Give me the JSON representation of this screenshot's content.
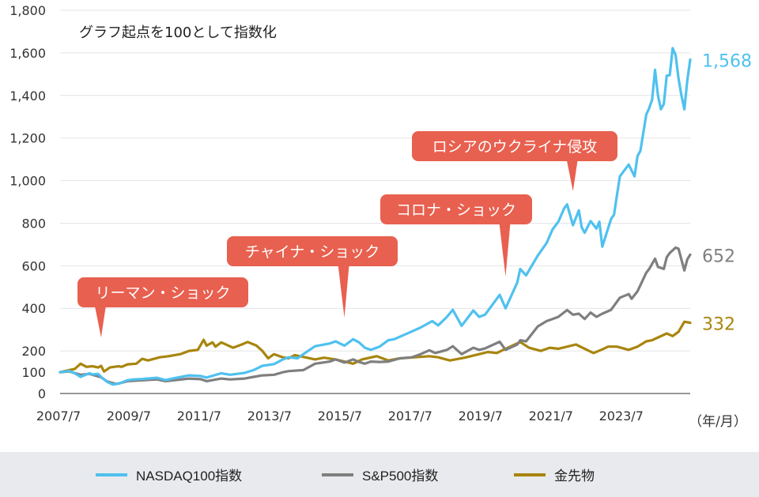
{
  "chart_data": {
    "type": "line",
    "title": "",
    "subtitle": "グラフ起点を100として指数化",
    "xlabel": "（年/月）",
    "ylabel": "",
    "ylim": [
      0,
      1800
    ],
    "yticks": [
      0,
      100,
      200,
      400,
      600,
      800,
      1000,
      1200,
      1400,
      1600,
      1800
    ],
    "ytick_labels": [
      "0",
      "100",
      "200",
      "400",
      "600",
      "800",
      "1,000",
      "1,200",
      "1,400",
      "1,600",
      "1,800"
    ],
    "xlim": [
      "2007/7",
      "2025/6"
    ],
    "xticks": [
      "2007/7",
      "2009/7",
      "2011/7",
      "2013/7",
      "2015/7",
      "2017/7",
      "2019/7",
      "2021/7",
      "2023/7"
    ],
    "grid": true,
    "legend_position": "bottom",
    "series": [
      {
        "name": "NASDAQ100指数",
        "color": "#4fc1ef",
        "end_label": "1,568",
        "points": [
          [
            "2007/7",
            100
          ],
          [
            "2007/10",
            106
          ],
          [
            "2007/12",
            95
          ],
          [
            "2008/2",
            78
          ],
          [
            "2008/5",
            95
          ],
          [
            "2008/6",
            90
          ],
          [
            "2008/8",
            92
          ],
          [
            "2008/9",
            78
          ],
          [
            "2008/11",
            55
          ],
          [
            "2009/1",
            42
          ],
          [
            "2009/3",
            46
          ],
          [
            "2009/6",
            62
          ],
          [
            "2009/8",
            66
          ],
          [
            "2009/11",
            68
          ],
          [
            "2010/4",
            74
          ],
          [
            "2010/7",
            63
          ],
          [
            "2010/10",
            72
          ],
          [
            "2011/3",
            85
          ],
          [
            "2011/7",
            82
          ],
          [
            "2011/9",
            75
          ],
          [
            "2012/2",
            95
          ],
          [
            "2012/5",
            88
          ],
          [
            "2012/10",
            97
          ],
          [
            "2013/1",
            110
          ],
          [
            "2013/4",
            130
          ],
          [
            "2013/8",
            138
          ],
          [
            "2013/11",
            160
          ],
          [
            "2014/1",
            170
          ],
          [
            "2014/4",
            165
          ],
          [
            "2014/6",
            185
          ],
          [
            "2014/10",
            222
          ],
          [
            "2015/3",
            235
          ],
          [
            "2015/5",
            245
          ],
          [
            "2015/8",
            225
          ],
          [
            "2015/11",
            255
          ],
          [
            "2016/1",
            240
          ],
          [
            "2016/3",
            215
          ],
          [
            "2016/5",
            205
          ],
          [
            "2016/8",
            220
          ],
          [
            "2016/11",
            250
          ],
          [
            "2017/1",
            255
          ],
          [
            "2017/6",
            285
          ],
          [
            "2017/10",
            310
          ],
          [
            "2018/2",
            340
          ],
          [
            "2018/4",
            320
          ],
          [
            "2018/7",
            360
          ],
          [
            "2018/9",
            393
          ],
          [
            "2018/12",
            318
          ],
          [
            "2019/4",
            390
          ],
          [
            "2019/6",
            360
          ],
          [
            "2019/8",
            370
          ],
          [
            "2020/1",
            463
          ],
          [
            "2020/3",
            400
          ],
          [
            "2020/7",
            522
          ],
          [
            "2020/8",
            585
          ],
          [
            "2020/10",
            555
          ],
          [
            "2021/2",
            648
          ],
          [
            "2021/5",
            707
          ],
          [
            "2021/7",
            770
          ],
          [
            "2021/9",
            807
          ],
          [
            "2021/11",
            870
          ],
          [
            "2021/12",
            888
          ],
          [
            "2022/2",
            790
          ],
          [
            "2022/4",
            860
          ],
          [
            "2022/5",
            780
          ],
          [
            "2022/6",
            755
          ],
          [
            "2022/8",
            810
          ],
          [
            "2022/10",
            775
          ],
          [
            "2022/11",
            807
          ],
          [
            "2022/12",
            690
          ],
          [
            "2023/3",
            820
          ],
          [
            "2023/4",
            840
          ],
          [
            "2023/6",
            1020
          ],
          [
            "2023/9",
            1075
          ],
          [
            "2023/11",
            1020
          ],
          [
            "2023/12",
            1115
          ],
          [
            "2024/1",
            1140
          ],
          [
            "2024/2",
            1225
          ],
          [
            "2024/3",
            1310
          ],
          [
            "2024/4",
            1340
          ],
          [
            "2024/5",
            1380
          ],
          [
            "2024/6",
            1520
          ],
          [
            "2024/7",
            1400
          ],
          [
            "2024/8",
            1335
          ],
          [
            "2024/9",
            1360
          ],
          [
            "2024/10",
            1493
          ],
          [
            "2024/11",
            1495
          ],
          [
            "2024/12",
            1622
          ],
          [
            "2025/1",
            1590
          ],
          [
            "2025/2",
            1480
          ],
          [
            "2025/3",
            1400
          ],
          [
            "2025/4",
            1335
          ],
          [
            "2025/5",
            1470
          ],
          [
            "2025/6",
            1568
          ]
        ]
      },
      {
        "name": "S&P500指数",
        "color": "#7f7f7f",
        "end_label": "652",
        "points": [
          [
            "2007/7",
            100
          ],
          [
            "2007/10",
            104
          ],
          [
            "2008/2",
            88
          ],
          [
            "2008/5",
            92
          ],
          [
            "2008/9",
            76
          ],
          [
            "2008/11",
            57
          ],
          [
            "2009/2",
            45
          ],
          [
            "2009/3",
            47
          ],
          [
            "2009/6",
            58
          ],
          [
            "2009/11",
            62
          ],
          [
            "2010/4",
            66
          ],
          [
            "2010/7",
            58
          ],
          [
            "2011/3",
            70
          ],
          [
            "2011/7",
            67
          ],
          [
            "2011/9",
            58
          ],
          [
            "2012/2",
            70
          ],
          [
            "2012/5",
            66
          ],
          [
            "2012/10",
            70
          ],
          [
            "2013/1",
            78
          ],
          [
            "2013/4",
            85
          ],
          [
            "2013/8",
            88
          ],
          [
            "2013/11",
            100
          ],
          [
            "2014/1",
            105
          ],
          [
            "2014/6",
            110
          ],
          [
            "2014/10",
            140
          ],
          [
            "2015/3",
            150
          ],
          [
            "2015/5",
            160
          ],
          [
            "2015/8",
            145
          ],
          [
            "2015/11",
            160
          ],
          [
            "2016/1",
            148
          ],
          [
            "2016/3",
            140
          ],
          [
            "2016/5",
            150
          ],
          [
            "2016/8",
            148
          ],
          [
            "2016/11",
            150
          ],
          [
            "2017/3",
            165
          ],
          [
            "2017/7",
            170
          ],
          [
            "2017/10",
            185
          ],
          [
            "2018/1",
            203
          ],
          [
            "2018/3",
            190
          ],
          [
            "2018/7",
            205
          ],
          [
            "2018/9",
            222
          ],
          [
            "2018/12",
            185
          ],
          [
            "2019/4",
            215
          ],
          [
            "2019/6",
            205
          ],
          [
            "2019/8",
            212
          ],
          [
            "2020/1",
            243
          ],
          [
            "2020/3",
            205
          ],
          [
            "2020/7",
            230
          ],
          [
            "2020/8",
            250
          ],
          [
            "2020/10",
            245
          ],
          [
            "2021/2",
            315
          ],
          [
            "2021/5",
            340
          ],
          [
            "2021/7",
            350
          ],
          [
            "2021/9",
            360
          ],
          [
            "2021/12",
            392
          ],
          [
            "2022/2",
            370
          ],
          [
            "2022/4",
            375
          ],
          [
            "2022/6",
            350
          ],
          [
            "2022/8",
            380
          ],
          [
            "2022/10",
            360
          ],
          [
            "2022/12",
            375
          ],
          [
            "2023/3",
            393
          ],
          [
            "2023/6",
            450
          ],
          [
            "2023/9",
            467
          ],
          [
            "2023/10",
            445
          ],
          [
            "2023/12",
            480
          ],
          [
            "2024/3",
            567
          ],
          [
            "2024/4",
            585
          ],
          [
            "2024/6",
            633
          ],
          [
            "2024/7",
            595
          ],
          [
            "2024/9",
            585
          ],
          [
            "2024/10",
            640
          ],
          [
            "2024/11",
            660
          ],
          [
            "2025/1",
            685
          ],
          [
            "2025/2",
            680
          ],
          [
            "2025/4",
            578
          ],
          [
            "2025/5",
            630
          ],
          [
            "2025/6",
            652
          ]
        ]
      },
      {
        "name": "金先物",
        "color": "#a8850e",
        "end_label": "332",
        "points": [
          [
            "2007/7",
            100
          ],
          [
            "2007/10",
            110
          ],
          [
            "2007/12",
            115
          ],
          [
            "2008/2",
            140
          ],
          [
            "2008/4",
            125
          ],
          [
            "2008/6",
            128
          ],
          [
            "2008/8",
            122
          ],
          [
            "2008/9",
            130
          ],
          [
            "2008/10",
            103
          ],
          [
            "2008/12",
            122
          ],
          [
            "2009/3",
            128
          ],
          [
            "2009/4",
            125
          ],
          [
            "2009/6",
            137
          ],
          [
            "2009/9",
            140
          ],
          [
            "2009/11",
            163
          ],
          [
            "2010/1",
            155
          ],
          [
            "2010/5",
            170
          ],
          [
            "2010/8",
            175
          ],
          [
            "2010/12",
            185
          ],
          [
            "2011/3",
            200
          ],
          [
            "2011/6",
            205
          ],
          [
            "2011/8",
            252
          ],
          [
            "2011/9",
            225
          ],
          [
            "2011/11",
            240
          ],
          [
            "2011/12",
            220
          ],
          [
            "2012/2",
            240
          ],
          [
            "2012/6",
            215
          ],
          [
            "2012/9",
            230
          ],
          [
            "2012/11",
            242
          ],
          [
            "2013/2",
            225
          ],
          [
            "2013/4",
            200
          ],
          [
            "2013/6",
            165
          ],
          [
            "2013/8",
            185
          ],
          [
            "2013/11",
            170
          ],
          [
            "2014/1",
            165
          ],
          [
            "2014/3",
            180
          ],
          [
            "2014/6",
            172
          ],
          [
            "2014/10",
            160
          ],
          [
            "2015/1",
            168
          ],
          [
            "2015/5",
            160
          ],
          [
            "2015/8",
            150
          ],
          [
            "2015/11",
            140
          ],
          [
            "2016/2",
            160
          ],
          [
            "2016/7",
            175
          ],
          [
            "2016/11",
            155
          ],
          [
            "2017/3",
            165
          ],
          [
            "2017/8",
            170
          ],
          [
            "2018/1",
            175
          ],
          [
            "2018/4",
            170
          ],
          [
            "2018/8",
            155
          ],
          [
            "2019/1",
            168
          ],
          [
            "2019/6",
            185
          ],
          [
            "2019/9",
            195
          ],
          [
            "2019/12",
            190
          ],
          [
            "2020/3",
            210
          ],
          [
            "2020/8",
            242
          ],
          [
            "2020/11",
            215
          ],
          [
            "2021/3",
            200
          ],
          [
            "2021/6",
            215
          ],
          [
            "2021/9",
            210
          ],
          [
            "2022/3",
            230
          ],
          [
            "2022/9",
            190
          ],
          [
            "2022/12",
            207
          ],
          [
            "2023/2",
            220
          ],
          [
            "2023/5",
            220
          ],
          [
            "2023/9",
            205
          ],
          [
            "2023/12",
            220
          ],
          [
            "2024/3",
            245
          ],
          [
            "2024/5",
            250
          ],
          [
            "2024/10",
            282
          ],
          [
            "2024/12",
            270
          ],
          [
            "2025/2",
            290
          ],
          [
            "2025/4",
            337
          ],
          [
            "2025/6",
            332
          ]
        ]
      }
    ],
    "annotations": [
      {
        "text": "リーマン・ショック",
        "date": "2008/9"
      },
      {
        "text": "チャイナ・ショック",
        "date": "2015/8"
      },
      {
        "text": "コロナ・ショック",
        "date": "2020/3"
      },
      {
        "text": "ロシアのウクライナ侵攻",
        "date": "2022/2"
      }
    ]
  },
  "colors": {
    "callout": "#e8604f",
    "legend_band": "#e9eaed"
  }
}
